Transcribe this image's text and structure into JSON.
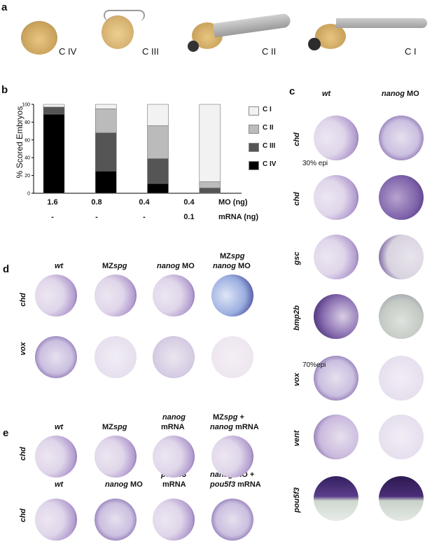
{
  "panels": {
    "a": "a",
    "b": "b",
    "c": "c",
    "d": "d",
    "e": "e"
  },
  "panel_a": {
    "stages": [
      "C IV",
      "C III",
      "C II",
      "C I"
    ]
  },
  "panel_b": {
    "ylabel": "% Scored Embryos",
    "mo_label": "MO   (ng)",
    "mrna_label": "mRNA (ng)",
    "mo_values": [
      "1.6",
      "0.8",
      "0.4",
      "0.4"
    ],
    "mrna_values": [
      "-",
      "-",
      "-",
      "0.1"
    ]
  },
  "chart_data": {
    "type": "bar",
    "stacked": true,
    "categories": [
      "1.6",
      "0.8",
      "0.4",
      "0.4"
    ],
    "ylim": [
      0,
      100
    ],
    "yticks": [
      0,
      20,
      40,
      60,
      80,
      100
    ],
    "ylabel": "% Scored Embryos",
    "legend_position": "right",
    "series": [
      {
        "name": "C IV",
        "color": "#000000",
        "values": [
          89,
          25,
          11,
          0
        ]
      },
      {
        "name": "C III",
        "color": "#555555",
        "values": [
          8,
          43,
          28,
          6
        ]
      },
      {
        "name": "C II",
        "color": "#bbbbbb",
        "values": [
          0,
          27,
          37,
          7
        ]
      },
      {
        "name": "C I",
        "color": "#f2f2f2",
        "values": [
          3,
          5,
          24,
          87
        ]
      }
    ]
  },
  "panel_c": {
    "col1": "wt",
    "col2": "nanog",
    "col2_suffix": " MO",
    "rows": [
      "chd",
      "chd",
      "gsc",
      "bmp2b",
      "vox",
      "vent",
      "pou5f3"
    ],
    "note_30": "30% epi",
    "note_70": "70%epi"
  },
  "panel_d": {
    "cols": [
      "wt",
      "MZ",
      "spg",
      "nanog",
      " MO",
      "MZ",
      "spg",
      "nanog",
      " MO"
    ],
    "rows": [
      "chd",
      "vox"
    ]
  },
  "panel_e": {
    "top_cols": [
      "wt",
      "MZ",
      "spg",
      "nanog",
      "mRNA",
      "MZ",
      "spg",
      " +",
      "nanog",
      " mRNA"
    ],
    "bottom_cols": [
      "wt",
      "nanog",
      " MO",
      "pou5f3",
      "mRNA",
      "nanog",
      " MO +",
      "pou5f3",
      " mRNA"
    ],
    "rows": [
      "chd",
      "chd"
    ]
  },
  "colors": {
    "yolk": "#e8d2a8",
    "stain": "#4a2d78",
    "embryo_bg": "#e4dcec"
  }
}
